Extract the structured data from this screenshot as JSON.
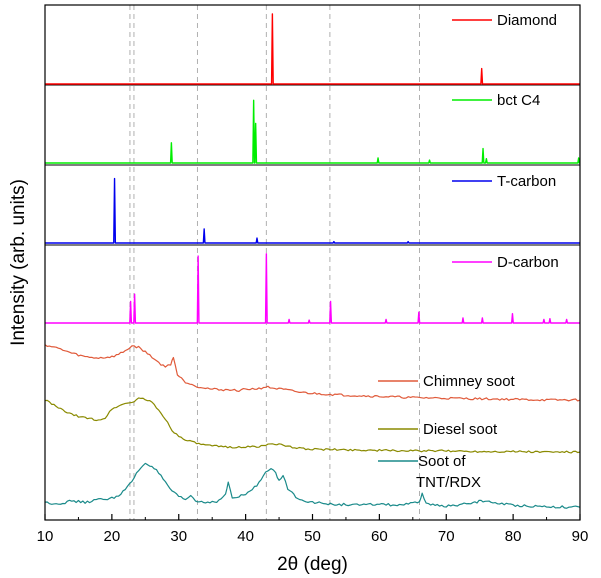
{
  "chart_data": {
    "type": "line",
    "title": "",
    "xlabel": "2θ (deg)",
    "ylabel": "Intensity (arb. units)",
    "xlim": [
      10,
      90
    ],
    "xticks": [
      "10",
      "20",
      "30",
      "40",
      "50",
      "60",
      "70",
      "80",
      "90"
    ],
    "yticks_visible": false,
    "stacked": true,
    "reference_lines_x": [
      22.7,
      23.3,
      32.8,
      43.1,
      52.6,
      66.0
    ],
    "series": [
      {
        "name": "Diamond",
        "color": "#ff0000",
        "type": "peaks",
        "baseline": 0,
        "peaks": [
          [
            44.0,
            1.0
          ],
          [
            75.3,
            0.22
          ]
        ]
      },
      {
        "name": "bct C4",
        "color": "#00ee00",
        "type": "peaks",
        "baseline": 0,
        "peaks": [
          [
            28.9,
            0.28
          ],
          [
            41.2,
            0.87
          ],
          [
            41.5,
            0.55
          ],
          [
            59.8,
            0.07
          ],
          [
            67.5,
            0.04
          ],
          [
            75.5,
            0.2
          ],
          [
            76.0,
            0.06
          ],
          [
            89.8,
            0.07
          ]
        ]
      },
      {
        "name": "T-carbon",
        "color": "#0000ee",
        "type": "peaks",
        "baseline": 0,
        "peaks": [
          [
            20.4,
            0.92
          ],
          [
            33.8,
            0.2
          ],
          [
            41.7,
            0.07
          ],
          [
            53.2,
            0.02
          ],
          [
            64.3,
            0.02
          ]
        ]
      },
      {
        "name": "D-carbon",
        "color": "#ff00ff",
        "type": "peaks",
        "baseline": 0,
        "peaks": [
          [
            22.8,
            0.3
          ],
          [
            23.4,
            0.4
          ],
          [
            32.9,
            0.93
          ],
          [
            43.1,
            0.96
          ],
          [
            46.5,
            0.05
          ],
          [
            49.5,
            0.04
          ],
          [
            52.7,
            0.3
          ],
          [
            61.0,
            0.05
          ],
          [
            65.9,
            0.15
          ],
          [
            72.5,
            0.07
          ],
          [
            75.4,
            0.07
          ],
          [
            79.9,
            0.13
          ],
          [
            84.6,
            0.05
          ],
          [
            85.5,
            0.06
          ],
          [
            88.0,
            0.05
          ]
        ]
      },
      {
        "name": "Chimney soot",
        "color": "#e05a3a",
        "type": "pattern",
        "x": [
          10,
          12,
          14,
          16,
          18,
          20,
          21,
          22,
          23,
          24,
          25,
          26,
          27,
          28,
          28.8,
          29.2,
          29.8,
          31,
          33,
          35,
          37,
          39,
          40,
          42,
          43,
          44,
          46,
          48,
          50,
          55,
          60,
          65,
          70,
          75,
          80,
          85,
          90
        ],
        "y": [
          0.92,
          0.86,
          0.78,
          0.72,
          0.7,
          0.72,
          0.76,
          0.82,
          0.9,
          0.88,
          0.8,
          0.72,
          0.62,
          0.55,
          0.6,
          0.72,
          0.42,
          0.3,
          0.22,
          0.18,
          0.17,
          0.16,
          0.18,
          0.19,
          0.22,
          0.2,
          0.17,
          0.13,
          0.11,
          0.08,
          0.06,
          0.04,
          0.03,
          0.02,
          0.01,
          0.0,
          0.0
        ]
      },
      {
        "name": "Diesel soot",
        "color": "#8a8a00",
        "type": "pattern",
        "x": [
          10,
          12,
          14,
          16,
          18,
          19,
          20,
          21,
          22,
          23,
          24,
          25,
          26,
          27,
          28,
          29,
          30,
          32,
          34,
          36,
          38,
          40,
          42,
          43,
          44,
          45,
          46,
          48,
          50,
          55,
          60,
          65,
          70,
          75,
          80,
          85,
          90
        ],
        "y": [
          0.95,
          0.8,
          0.68,
          0.62,
          0.58,
          0.62,
          0.78,
          0.84,
          0.88,
          0.9,
          0.98,
          0.96,
          0.9,
          0.76,
          0.6,
          0.4,
          0.28,
          0.18,
          0.12,
          0.1,
          0.09,
          0.09,
          0.1,
          0.12,
          0.16,
          0.14,
          0.1,
          0.07,
          0.05,
          0.04,
          0.03,
          0.02,
          0.02,
          0.01,
          0.01,
          0.0,
          0.0
        ]
      },
      {
        "name": "Soot of TNT/RDX",
        "color": "#1a8a8a",
        "type": "pattern",
        "x": [
          10,
          12,
          14,
          16,
          18,
          20,
          21,
          22,
          23,
          24,
          25,
          26,
          27,
          28,
          29,
          30,
          31,
          31.8,
          32.5,
          34,
          36,
          37,
          37.4,
          38,
          39,
          40,
          41,
          42,
          43,
          43.8,
          44.5,
          45,
          45.6,
          46.3,
          47.5,
          49,
          51,
          53,
          55,
          58,
          60,
          62,
          64,
          66,
          66.4,
          67,
          68,
          70,
          72,
          74,
          75.5,
          77,
          80,
          85,
          90
        ],
        "y": [
          0.08,
          0.06,
          0.1,
          0.08,
          0.12,
          0.14,
          0.18,
          0.26,
          0.38,
          0.54,
          0.64,
          0.6,
          0.5,
          0.36,
          0.24,
          0.16,
          0.12,
          0.18,
          0.1,
          0.08,
          0.1,
          0.2,
          0.36,
          0.14,
          0.16,
          0.2,
          0.26,
          0.36,
          0.52,
          0.58,
          0.5,
          0.38,
          0.46,
          0.28,
          0.16,
          0.1,
          0.07,
          0.05,
          0.05,
          0.04,
          0.06,
          0.04,
          0.05,
          0.08,
          0.22,
          0.06,
          0.04,
          0.03,
          0.04,
          0.08,
          0.1,
          0.08,
          0.04,
          0.02,
          0.01
        ]
      }
    ],
    "legend": [
      {
        "label": "Diamond",
        "color": "#ff0000"
      },
      {
        "label": "bct C4",
        "color": "#00ee00"
      },
      {
        "label": "T-carbon",
        "color": "#0000ee"
      },
      {
        "label": "D-carbon",
        "color": "#ff00ff"
      },
      {
        "label": "Chimney soot",
        "color": "#e05a3a"
      },
      {
        "label": "Diesel soot",
        "color": "#8a8a00"
      },
      {
        "label": "Soot of TNT/RDX",
        "color": "#1a8a8a",
        "lines": [
          "Soot of",
          "TNT/RDX"
        ]
      }
    ]
  }
}
